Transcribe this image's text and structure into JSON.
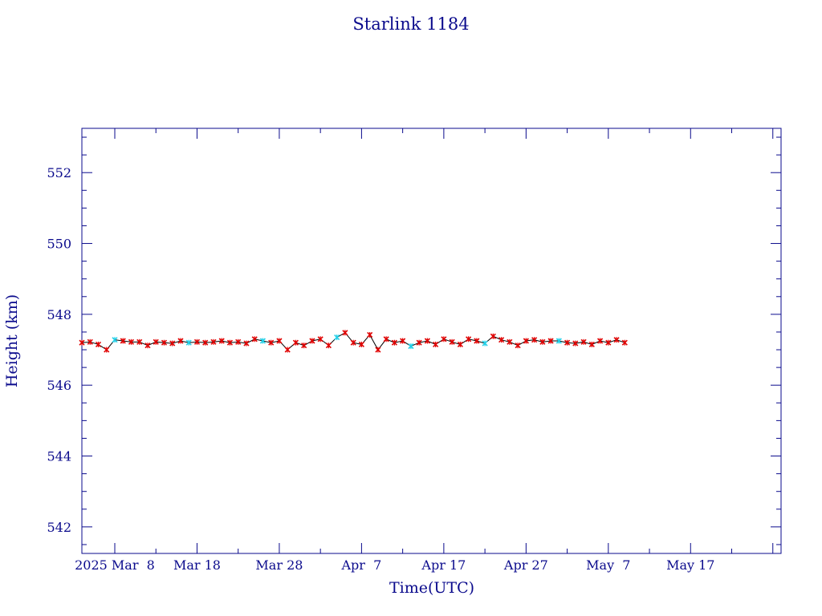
{
  "chart_data": {
    "type": "line",
    "title": "Starlink 1184",
    "xlabel": "Time(UTC)",
    "ylabel": "Height (km)",
    "x_axis": {
      "min": "2025-02-25",
      "max": "2025-05-21",
      "major_ticks": [
        {
          "date": "2025-03-01",
          "label": "2025 Mar  8"
        },
        {
          "date": "2025-03-11",
          "label": "Mar 18"
        },
        {
          "date": "2025-03-21",
          "label": "Mar 28"
        },
        {
          "date": "2025-03-31",
          "label": "Apr  7"
        },
        {
          "date": "2025-04-10",
          "label": "Apr 17"
        },
        {
          "date": "2025-04-20",
          "label": "Apr 27"
        },
        {
          "date": "2025-04-30",
          "label": "May  7"
        },
        {
          "date": "2025-05-10",
          "label": "May 17"
        },
        {
          "date": "2025-05-20",
          "label": ""
        }
      ],
      "tick_labels_shown": [
        "2025 Mar  8",
        "Mar 18",
        "Mar 28",
        "Apr  7",
        "Apr 17",
        "Apr 27",
        "May  7",
        "May 17"
      ]
    },
    "y_axis": {
      "min": 541.25,
      "max": 553.25,
      "major_ticks": [
        542,
        544,
        546,
        548,
        550,
        552
      ],
      "minor_step": 0.5
    },
    "grid": false,
    "colors": {
      "axes": "#0a0a8c",
      "line": "#000000",
      "points": "#e00000",
      "interpolated_points": "#22d0e8"
    },
    "series": [
      {
        "x": [
          "2025-02-25",
          "2025-02-26",
          "2025-02-27",
          "2025-02-28",
          "2025-03-01",
          "2025-03-02",
          "2025-03-03",
          "2025-03-04",
          "2025-03-05",
          "2025-03-06",
          "2025-03-07",
          "2025-03-08",
          "2025-03-09",
          "2025-03-10",
          "2025-03-11",
          "2025-03-12",
          "2025-03-13",
          "2025-03-14",
          "2025-03-15",
          "2025-03-16",
          "2025-03-17",
          "2025-03-18",
          "2025-03-19",
          "2025-03-20",
          "2025-03-21",
          "2025-03-22",
          "2025-03-23",
          "2025-03-24",
          "2025-03-25",
          "2025-03-26",
          "2025-03-27",
          "2025-03-28",
          "2025-03-29",
          "2025-03-30",
          "2025-03-31",
          "2025-04-01",
          "2025-04-02",
          "2025-04-03",
          "2025-04-04",
          "2025-04-05",
          "2025-04-06",
          "2025-04-07",
          "2025-04-08",
          "2025-04-09",
          "2025-04-10",
          "2025-04-11",
          "2025-04-12",
          "2025-04-13",
          "2025-04-14",
          "2025-04-15",
          "2025-04-16",
          "2025-04-17",
          "2025-04-18",
          "2025-04-19",
          "2025-04-20",
          "2025-04-21",
          "2025-04-22",
          "2025-04-23",
          "2025-04-24",
          "2025-04-25",
          "2025-04-26",
          "2025-04-27",
          "2025-04-28",
          "2025-04-29",
          "2025-04-30",
          "2025-05-01",
          "2025-05-02"
        ],
        "y": [
          547.2,
          547.22,
          547.15,
          547.0,
          547.28,
          547.25,
          547.22,
          547.22,
          547.12,
          547.22,
          547.2,
          547.18,
          547.25,
          547.2,
          547.22,
          547.2,
          547.22,
          547.25,
          547.2,
          547.22,
          547.18,
          547.3,
          547.25,
          547.2,
          547.25,
          547.0,
          547.2,
          547.12,
          547.25,
          547.3,
          547.12,
          547.35,
          547.48,
          547.2,
          547.15,
          547.42,
          547.0,
          547.3,
          547.2,
          547.25,
          547.1,
          547.2,
          547.25,
          547.15,
          547.3,
          547.22,
          547.15,
          547.3,
          547.25,
          547.18,
          547.38,
          547.28,
          547.22,
          547.12,
          547.25,
          547.28,
          547.22,
          547.25,
          547.25,
          547.2,
          547.18,
          547.22,
          547.15,
          547.25,
          547.2,
          547.28,
          547.2
        ]
      }
    ]
  }
}
